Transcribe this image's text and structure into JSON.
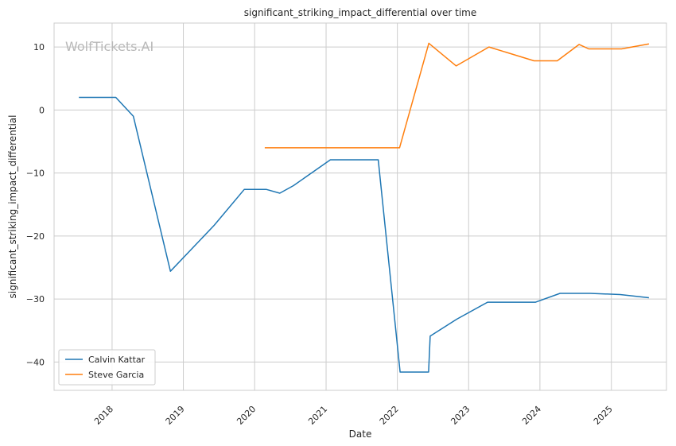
{
  "chart_data": {
    "type": "line",
    "title": "significant_striking_impact_differential over time",
    "xlabel": "Date",
    "ylabel": "significant_striking_impact_differential",
    "watermark": "WolfTickets.AI",
    "x_ticks": [
      "2018",
      "2019",
      "2020",
      "2021",
      "2022",
      "2023",
      "2024",
      "2025"
    ],
    "y_ticks": [
      10,
      0,
      -10,
      -20,
      -30,
      -40
    ],
    "xlim": [
      "2017-03-10",
      "2025-10-10"
    ],
    "ylim": [
      -44.5,
      13.8
    ],
    "grid": true,
    "legend_position": "lower-left",
    "series": [
      {
        "name": "Calvin Kattar",
        "color": "#1f77b4",
        "points": [
          [
            "2017-07-15",
            2.0
          ],
          [
            "2018-01-20",
            2.0
          ],
          [
            "2018-04-20",
            -1.0
          ],
          [
            "2018-10-27",
            -25.6
          ],
          [
            "2019-06-08",
            -18.3
          ],
          [
            "2019-11-09",
            -12.6
          ],
          [
            "2020-02-29",
            -12.6
          ],
          [
            "2020-05-09",
            -13.2
          ],
          [
            "2020-07-18",
            -12.0
          ],
          [
            "2021-01-23",
            -7.9
          ],
          [
            "2021-09-25",
            -7.9
          ],
          [
            "2022-01-15",
            -41.6
          ],
          [
            "2022-06-10",
            -41.6
          ],
          [
            "2022-06-18",
            -35.9
          ],
          [
            "2022-11-01",
            -33.2
          ],
          [
            "2023-04-08",
            -30.5
          ],
          [
            "2023-12-10",
            -30.5
          ],
          [
            "2024-04-13",
            -29.1
          ],
          [
            "2024-09-14",
            -29.1
          ],
          [
            "2025-02-15",
            -29.3
          ],
          [
            "2025-07-12",
            -29.8
          ]
        ]
      },
      {
        "name": "Steve Garcia",
        "color": "#ff7f0e",
        "points": [
          [
            "2020-02-22",
            -6.0
          ],
          [
            "2022-01-12",
            -6.0
          ],
          [
            "2022-06-11",
            10.6
          ],
          [
            "2022-10-29",
            7.0
          ],
          [
            "2023-04-15",
            10.0
          ],
          [
            "2023-12-02",
            7.8
          ],
          [
            "2024-03-30",
            7.8
          ],
          [
            "2024-07-20",
            10.4
          ],
          [
            "2024-09-07",
            9.7
          ],
          [
            "2025-02-22",
            9.7
          ],
          [
            "2025-07-12",
            10.5
          ]
        ]
      }
    ]
  }
}
